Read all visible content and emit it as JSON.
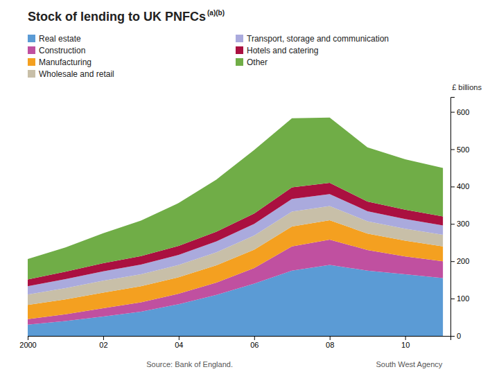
{
  "chart_data": {
    "type": "area",
    "stacked": true,
    "title": "Stock of lending to UK PNFCs",
    "annotations": [
      "(a)(b)",
      "Source: Bank of England.",
      "South West Agency"
    ],
    "ylabel": "£ billions",
    "x": [
      2000,
      2001,
      2002,
      2003,
      2004,
      2005,
      2006,
      2007,
      2008,
      2009,
      2010,
      2011
    ],
    "series": [
      {
        "name": "Real estate",
        "color": "#5B9BD5",
        "values": [
          30,
          40,
          52,
          65,
          85,
          110,
          140,
          175,
          190,
          175,
          165,
          155
        ]
      },
      {
        "name": "Construction",
        "color": "#C050A0",
        "values": [
          15,
          18,
          22,
          25,
          28,
          33,
          42,
          65,
          68,
          55,
          48,
          45
        ]
      },
      {
        "name": "Manufacturing",
        "color": "#F4A020",
        "values": [
          38,
          40,
          42,
          43,
          44,
          46,
          49,
          53,
          52,
          44,
          42,
          40
        ]
      },
      {
        "name": "Wholesale and retail",
        "color": "#C8BFA8",
        "values": [
          28,
          30,
          32,
          32,
          33,
          35,
          38,
          40,
          38,
          33,
          32,
          31
        ]
      },
      {
        "name": "Transport, storage and communication",
        "color": "#AAAADD",
        "values": [
          22,
          24,
          25,
          26,
          27,
          29,
          31,
          34,
          32,
          27,
          26,
          25
        ]
      },
      {
        "name": "Hotels and catering",
        "color": "#AA1040",
        "values": [
          18,
          20,
          22,
          23,
          24,
          26,
          28,
          31,
          30,
          26,
          25,
          24
        ]
      },
      {
        "name": "Other",
        "color": "#70AD47",
        "values": [
          55,
          65,
          80,
          95,
          115,
          140,
          170,
          185,
          175,
          145,
          135,
          130
        ]
      }
    ],
    "xlim": [
      2000,
      2011.2
    ],
    "xticks": [
      2000,
      {
        "value": 2002,
        "label": "02"
      },
      {
        "value": 2004,
        "label": "04"
      },
      {
        "value": 2006,
        "label": "06"
      },
      {
        "value": 2008,
        "label": "08"
      },
      {
        "value": 2010,
        "label": "10"
      }
    ],
    "ylim": [
      0,
      640
    ],
    "yticks": [
      0,
      100,
      200,
      300,
      400,
      500,
      600
    ],
    "grid": false,
    "legend": "top"
  }
}
